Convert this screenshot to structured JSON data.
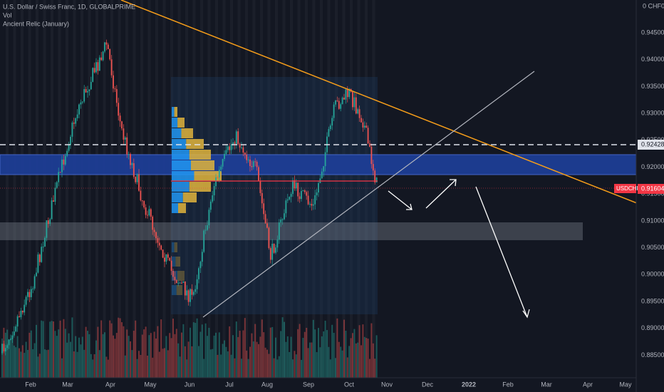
{
  "header": {
    "symbol": "U.S. Dollar / Swiss Franc, 1D, GLOBALPRIME",
    "line2": "Vol",
    "line3": "Ancient Relic (January)"
  },
  "price_axis": {
    "currency": "0 CHF0",
    "ticks": [
      "0.94500",
      "0.94000",
      "0.93500",
      "0.93000",
      "0.92500",
      "0.92000",
      "0.91500",
      "0.91000",
      "0.90500",
      "0.90000",
      "0.89500",
      "0.89000",
      "0.88500"
    ]
  },
  "time_axis": {
    "labels": [
      "Feb",
      "Mar",
      "Apr",
      "May",
      "Jun",
      "Jul",
      "Aug",
      "Sep",
      "Oct",
      "Nov",
      "Dec",
      "2022",
      "Feb",
      "Mar",
      "Apr",
      "May"
    ]
  },
  "tags": {
    "level": "0.92428",
    "symbol": "USDCHF",
    "last": "0.91604"
  }
}
